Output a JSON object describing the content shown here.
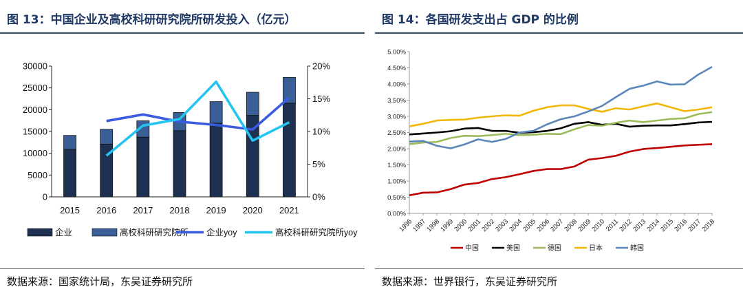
{
  "figures": [
    {
      "title": "图 13：中国企业及高校科研研究院所研发投入（亿元）",
      "source": "数据来源：国家统计局，东吴证券研究所"
    },
    {
      "title": "图 14：各国研发支出占 GDP 的比例",
      "source": "数据来源：世界银行，东吴证券研究所"
    }
  ],
  "colors": {
    "title": "#1f3864",
    "bar_enterprise": "#1f3152",
    "bar_univ": "#3a5e96",
    "line_enterprise": "#3a5ce0",
    "line_univ": "#25c4f0",
    "china": "#c00000",
    "usa": "#000000",
    "germany": "#9bbb59",
    "japan": "#f2b705",
    "korea": "#5b86b8"
  },
  "chart_data": [
    {
      "type": "bar",
      "stacked": true,
      "categories": [
        "2015",
        "2016",
        "2017",
        "2018",
        "2019",
        "2020",
        "2021"
      ],
      "series": [
        {
          "name": "企业",
          "kind": "bar",
          "values": [
            10900,
            12100,
            13700,
            15200,
            16900,
            18700,
            21500
          ]
        },
        {
          "name": "高校科研研究院所",
          "kind": "bar",
          "values": [
            3200,
            3400,
            3750,
            4150,
            4950,
            5300,
            5900
          ]
        },
        {
          "name": "企业yoy",
          "kind": "line",
          "axis": "right",
          "values": [
            null,
            11.6,
            12.6,
            11.5,
            11.0,
            10.3,
            15.2
          ]
        },
        {
          "name": "高校科研研究院所yoy",
          "kind": "line",
          "axis": "right",
          "values": [
            null,
            6.3,
            10.9,
            11.9,
            17.6,
            8.6,
            11.4
          ]
        }
      ],
      "legend": [
        "企业",
        "高校科研研究院所",
        "企业yoy",
        "高校科研研究院所yoy"
      ],
      "ylim": [
        0,
        30000
      ],
      "yticks": [
        "0",
        "5000",
        "10000",
        "15000",
        "20000",
        "25000",
        "30000"
      ],
      "y2lim": [
        0,
        20
      ],
      "y2ticks": [
        "0%",
        "5%",
        "10%",
        "15%",
        "20%"
      ],
      "legend_position": "bottom"
    },
    {
      "type": "line",
      "x": [
        "1996",
        "1997",
        "1998",
        "1999",
        "2000",
        "2001",
        "2002",
        "2003",
        "2004",
        "2005",
        "2006",
        "2007",
        "2008",
        "2009",
        "2010",
        "2011",
        "2012",
        "2013",
        "2014",
        "2015",
        "2016",
        "2017",
        "2018"
      ],
      "series": [
        {
          "name": "中国",
          "values": [
            0.56,
            0.64,
            0.65,
            0.75,
            0.89,
            0.94,
            1.06,
            1.12,
            1.21,
            1.31,
            1.37,
            1.37,
            1.45,
            1.66,
            1.71,
            1.78,
            1.91,
            1.99,
            2.02,
            2.06,
            2.1,
            2.12,
            2.14
          ]
        },
        {
          "name": "美国",
          "values": [
            2.44,
            2.47,
            2.5,
            2.54,
            2.62,
            2.64,
            2.55,
            2.55,
            2.49,
            2.51,
            2.55,
            2.63,
            2.77,
            2.82,
            2.74,
            2.77,
            2.68,
            2.71,
            2.72,
            2.72,
            2.76,
            2.81,
            2.83
          ]
        },
        {
          "name": "德国",
          "values": [
            2.14,
            2.19,
            2.21,
            2.33,
            2.4,
            2.39,
            2.42,
            2.46,
            2.42,
            2.43,
            2.46,
            2.45,
            2.6,
            2.73,
            2.71,
            2.8,
            2.87,
            2.82,
            2.87,
            2.92,
            2.94,
            3.07,
            3.13
          ]
        },
        {
          "name": "日本",
          "values": [
            2.69,
            2.77,
            2.87,
            2.89,
            2.9,
            2.96,
            3.0,
            3.03,
            3.02,
            3.17,
            3.28,
            3.34,
            3.34,
            3.23,
            3.14,
            3.25,
            3.21,
            3.31,
            3.4,
            3.28,
            3.16,
            3.21,
            3.28
          ]
        },
        {
          "name": "韩国",
          "values": [
            2.22,
            2.24,
            2.09,
            2.01,
            2.13,
            2.29,
            2.21,
            2.3,
            2.5,
            2.55,
            2.75,
            2.91,
            3.0,
            3.15,
            3.32,
            3.59,
            3.85,
            3.95,
            4.08,
            3.98,
            3.99,
            4.29,
            4.53
          ]
        }
      ],
      "legend": [
        "中国",
        "美国",
        "德国",
        "日本",
        "韩国"
      ],
      "ylim": [
        0,
        5
      ],
      "yticks": [
        "0.00%",
        "0.50%",
        "1.00%",
        "1.50%",
        "2.00%",
        "2.50%",
        "3.00%",
        "3.50%",
        "4.00%",
        "4.50%",
        "5.00%"
      ],
      "legend_position": "bottom"
    }
  ]
}
